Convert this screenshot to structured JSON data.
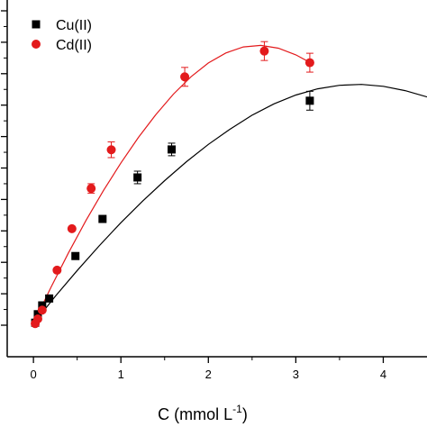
{
  "chart_data": {
    "type": "scatter",
    "xlabel": "C (mmol L",
    "xlabel_superscript": "-1",
    "xlabel_suffix": ")",
    "xlim": [
      -0.3,
      4.5
    ],
    "ylim": [
      0,
      1
    ],
    "x_ticks": [
      0,
      1,
      2,
      3,
      4
    ],
    "y_tick_count": 11,
    "grid": false,
    "legend_position": "top-left",
    "series": [
      {
        "name": "Cu(II)",
        "color": "#000000",
        "marker": "square",
        "points": [
          {
            "x": 0.02,
            "y": 0.008
          },
          {
            "x": 0.05,
            "y": 0.035
          },
          {
            "x": 0.1,
            "y": 0.063
          },
          {
            "x": 0.18,
            "y": 0.085
          },
          {
            "x": 0.48,
            "y": 0.22
          },
          {
            "x": 0.79,
            "y": 0.338
          },
          {
            "x": 1.19,
            "y": 0.47,
            "err": 0.02
          },
          {
            "x": 1.58,
            "y": 0.559,
            "err": 0.02
          },
          {
            "x": 3.16,
            "y": 0.714,
            "err": 0.03
          }
        ],
        "fit_curve": [
          [
            0,
            0.005
          ],
          [
            0.25,
            0.092
          ],
          [
            0.5,
            0.174
          ],
          [
            0.75,
            0.252
          ],
          [
            1.0,
            0.326
          ],
          [
            1.25,
            0.395
          ],
          [
            1.5,
            0.46
          ],
          [
            1.75,
            0.52
          ],
          [
            2.0,
            0.575
          ],
          [
            2.25,
            0.624
          ],
          [
            2.5,
            0.668
          ],
          [
            2.75,
            0.704
          ],
          [
            3.0,
            0.732
          ],
          [
            3.25,
            0.752
          ],
          [
            3.5,
            0.763
          ],
          [
            3.75,
            0.766
          ],
          [
            4.0,
            0.76
          ],
          [
            4.25,
            0.746
          ],
          [
            4.5,
            0.726
          ]
        ]
      },
      {
        "name": "Cd(II)",
        "color": "#e31a1c",
        "marker": "circle",
        "points": [
          {
            "x": 0.02,
            "y": 0.005
          },
          {
            "x": 0.05,
            "y": 0.02
          },
          {
            "x": 0.1,
            "y": 0.048
          },
          {
            "x": 0.27,
            "y": 0.175
          },
          {
            "x": 0.44,
            "y": 0.307
          },
          {
            "x": 0.66,
            "y": 0.435,
            "err": 0.015
          },
          {
            "x": 0.89,
            "y": 0.558,
            "err": 0.025
          },
          {
            "x": 1.73,
            "y": 0.79,
            "err": 0.03
          },
          {
            "x": 2.64,
            "y": 0.872,
            "err": 0.03
          },
          {
            "x": 3.16,
            "y": 0.835,
            "err": 0.03
          }
        ],
        "fit_curve": [
          [
            0,
            0.005
          ],
          [
            0.2,
            0.12
          ],
          [
            0.4,
            0.23
          ],
          [
            0.6,
            0.333
          ],
          [
            0.8,
            0.428
          ],
          [
            1.0,
            0.516
          ],
          [
            1.2,
            0.597
          ],
          [
            1.4,
            0.67
          ],
          [
            1.6,
            0.735
          ],
          [
            1.8,
            0.79
          ],
          [
            2.0,
            0.834
          ],
          [
            2.2,
            0.866
          ],
          [
            2.4,
            0.885
          ],
          [
            2.6,
            0.89
          ],
          [
            2.8,
            0.881
          ],
          [
            3.0,
            0.86
          ],
          [
            3.2,
            0.83
          ]
        ]
      }
    ]
  }
}
